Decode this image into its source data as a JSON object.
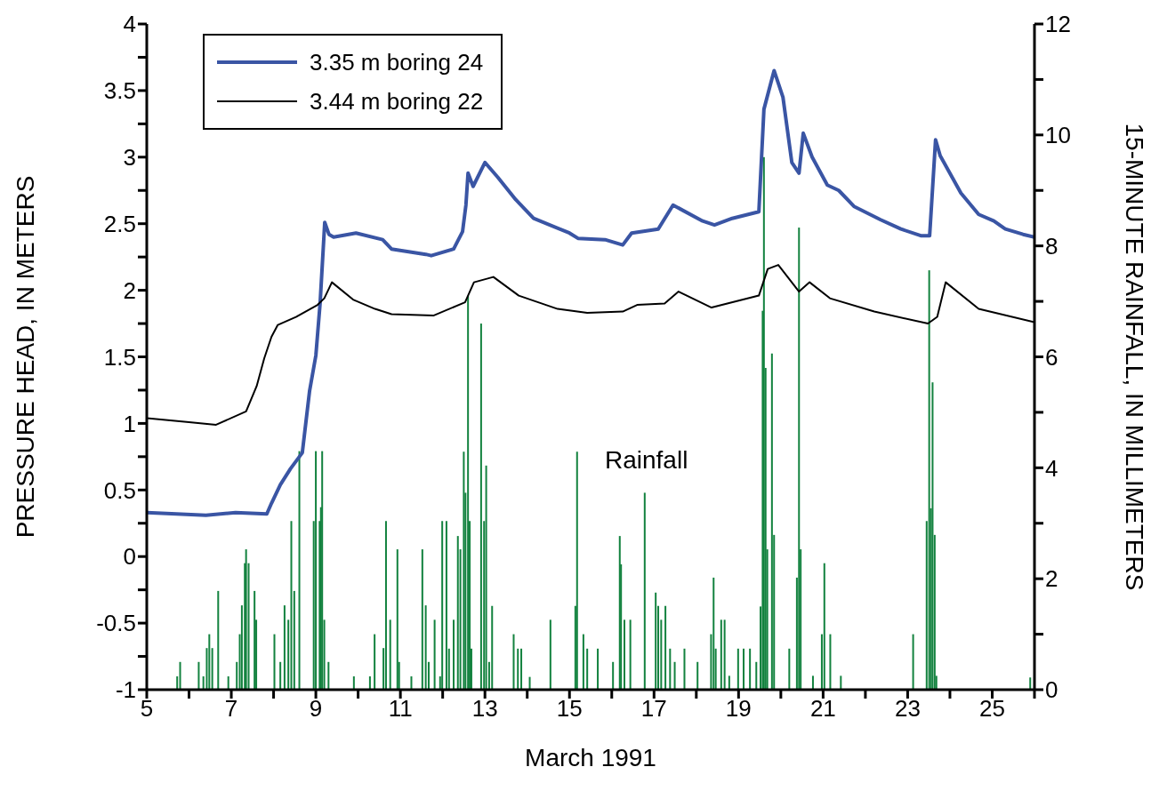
{
  "chart_data": {
    "type": "line",
    "xlabel": "March 1991",
    "ylabel": "PRESSURE HEAD, IN METERS",
    "y2label": "15-MINUTE RAINFALL, IN MILLIMETERS",
    "xlim": [
      5,
      26
    ],
    "xticks": [
      5,
      {
        "value": 6,
        "label": null
      },
      7,
      {
        "value": 8,
        "label": null
      },
      9,
      {
        "value": 10,
        "label": null
      },
      11,
      {
        "value": 12,
        "label": null
      },
      13,
      {
        "value": 14,
        "label": null
      },
      15,
      {
        "value": 16,
        "label": null
      },
      17,
      {
        "value": 18,
        "label": null
      },
      19,
      {
        "value": 20,
        "label": null
      },
      21,
      {
        "value": 22,
        "label": null
      },
      23,
      {
        "value": 24,
        "label": null
      },
      25,
      {
        "value": 26,
        "label": null
      }
    ],
    "ylim": [
      -1,
      4
    ],
    "yticks": [
      -1,
      {
        "value": -0.75,
        "label": null
      },
      -0.5,
      {
        "value": -0.25,
        "label": null
      },
      0,
      {
        "value": 0.25,
        "label": null
      },
      0.5,
      {
        "value": 0.75,
        "label": null
      },
      1,
      {
        "value": 1.25,
        "label": null
      },
      1.5,
      {
        "value": 1.75,
        "label": null
      },
      2,
      {
        "value": 2.25,
        "label": null
      },
      2.5,
      {
        "value": 2.75,
        "label": null
      },
      3,
      {
        "value": 3.25,
        "label": null
      },
      3.5,
      {
        "value": 3.75,
        "label": null
      },
      4
    ],
    "y2lim": [
      0,
      12
    ],
    "y2ticks": [
      0,
      {
        "value": 1,
        "label": null
      },
      2,
      {
        "value": 3,
        "label": null
      },
      4,
      {
        "value": 5,
        "label": null
      },
      6,
      {
        "value": 7,
        "label": null
      },
      8,
      {
        "value": 9,
        "label": null
      },
      10,
      {
        "value": 11,
        "label": null
      },
      12
    ],
    "legend": "top left",
    "grid": false,
    "marker": "none",
    "series": [
      {
        "name": "3.35 m boring 24",
        "color": "#3a55a4",
        "x": [
          5,
          5.7,
          6.4,
          7.1,
          7.84,
          7.95,
          8.16,
          8.4,
          8.68,
          8.85,
          9.0,
          9.1,
          9.21,
          9.31,
          9.42,
          9.95,
          10.58,
          10.79,
          11.6,
          11.73,
          12.26,
          12.47,
          12.55,
          12.6,
          12.72,
          13.0,
          13.3,
          13.73,
          14.15,
          15.0,
          15.2,
          15.84,
          16.26,
          16.47,
          17.1,
          17.45,
          18.15,
          18.43,
          18.85,
          19.48,
          19.6,
          19.84,
          20.05,
          20.26,
          20.43,
          20.53,
          20.74,
          21.1,
          21.37,
          21.73,
          22.36,
          22.84,
          23.31,
          23.52,
          23.66,
          23.77,
          23.98,
          24.26,
          24.68,
          25.04,
          25.31,
          25.73,
          26
        ],
        "values": [
          0.33,
          0.32,
          0.31,
          0.33,
          0.32,
          0.4,
          0.54,
          0.66,
          0.78,
          1.24,
          1.51,
          1.9,
          2.51,
          2.42,
          2.4,
          2.43,
          2.38,
          2.31,
          2.27,
          2.26,
          2.31,
          2.44,
          2.64,
          2.88,
          2.78,
          2.96,
          2.85,
          2.68,
          2.54,
          2.43,
          2.39,
          2.38,
          2.34,
          2.43,
          2.46,
          2.64,
          2.52,
          2.49,
          2.54,
          2.59,
          3.36,
          3.65,
          3.45,
          2.96,
          2.88,
          3.18,
          3.0,
          2.79,
          2.75,
          2.63,
          2.53,
          2.46,
          2.41,
          2.41,
          3.13,
          3.01,
          2.89,
          2.73,
          2.57,
          2.52,
          2.46,
          2.42,
          2.4
        ]
      },
      {
        "name": "3.44 m boring 22",
        "color": "#000000",
        "x": [
          5,
          6.0,
          6.64,
          7.35,
          7.6,
          7.78,
          7.95,
          8.1,
          8.53,
          9.04,
          9.2,
          9.38,
          9.88,
          10.4,
          10.79,
          11.78,
          12.53,
          12.74,
          13.2,
          13.8,
          14.72,
          15.42,
          16.26,
          16.6,
          17.25,
          17.58,
          18.36,
          19.48,
          19.69,
          19.94,
          20.43,
          20.68,
          21.16,
          22.21,
          23.48,
          23.7,
          23.9,
          24.68,
          26
        ],
        "values": [
          1.04,
          1.01,
          0.99,
          1.09,
          1.28,
          1.49,
          1.65,
          1.74,
          1.8,
          1.89,
          1.94,
          2.06,
          1.93,
          1.86,
          1.82,
          1.81,
          1.91,
          2.06,
          2.1,
          1.96,
          1.86,
          1.83,
          1.84,
          1.89,
          1.9,
          1.99,
          1.87,
          1.96,
          2.16,
          2.19,
          1.99,
          2.06,
          1.94,
          1.84,
          1.75,
          1.8,
          2.06,
          1.86,
          1.76
        ]
      },
      {
        "name": "Rainfall",
        "type": "bar",
        "axis": "y2",
        "color": "#13823f",
        "x": [
          5.72,
          5.79,
          6.23,
          6.34,
          6.42,
          6.48,
          6.55,
          6.69,
          6.93,
          7.13,
          7.2,
          7.25,
          7.32,
          7.35,
          7.41,
          7.55,
          7.59,
          8.02,
          8.16,
          8.26,
          8.35,
          8.42,
          8.49,
          8.61,
          8.95,
          9.0,
          9.09,
          9.12,
          9.15,
          9.2,
          9.3,
          9.9,
          10.28,
          10.39,
          10.6,
          10.66,
          10.76,
          10.93,
          10.97,
          11.26,
          11.52,
          11.6,
          11.67,
          11.81,
          11.94,
          11.99,
          12.09,
          12.15,
          12.26,
          12.36,
          12.42,
          12.5,
          12.54,
          12.6,
          12.64,
          12.68,
          12.91,
          12.98,
          13.03,
          13.1,
          13.17,
          13.68,
          13.78,
          13.86,
          14.06,
          14.55,
          15.14,
          15.18,
          15.33,
          15.42,
          15.67,
          16.03,
          16.19,
          16.22,
          16.3,
          16.44,
          16.78,
          17.04,
          17.1,
          17.17,
          17.27,
          17.38,
          17.49,
          17.72,
          18.03,
          18.35,
          18.41,
          18.46,
          18.59,
          18.67,
          18.78,
          18.99,
          19.12,
          19.27,
          19.42,
          19.52,
          19.57,
          19.6,
          19.64,
          19.68,
          19.79,
          19.84,
          20.2,
          20.38,
          20.43,
          20.47,
          20.76,
          20.97,
          21.03,
          21.17,
          21.42,
          23.13,
          23.45,
          23.51,
          23.55,
          23.59,
          23.64,
          23.68,
          25.9
        ],
        "values": [
          0.24,
          0.5,
          0.5,
          0.24,
          0.75,
          1.0,
          0.75,
          1.78,
          0.24,
          0.5,
          1.0,
          1.52,
          2.28,
          2.53,
          2.28,
          1.78,
          1.26,
          1.0,
          0.5,
          1.52,
          1.26,
          3.04,
          1.78,
          4.3,
          3.04,
          4.3,
          3.04,
          3.29,
          4.3,
          1.26,
          0.5,
          0.24,
          0.24,
          1.0,
          0.75,
          3.04,
          1.26,
          2.53,
          0.5,
          0.24,
          2.53,
          1.52,
          0.5,
          1.26,
          0.24,
          3.04,
          3.04,
          0.74,
          1.26,
          2.77,
          2.53,
          4.29,
          3.55,
          7.1,
          3.04,
          0.74,
          6.6,
          3.04,
          4.04,
          0.5,
          1.51,
          1.0,
          0.74,
          0.74,
          0.23,
          1.26,
          1.51,
          4.29,
          1.0,
          0.74,
          0.74,
          0.5,
          2.77,
          2.26,
          1.26,
          1.26,
          3.55,
          1.75,
          1.51,
          1.26,
          1.51,
          0.74,
          0.5,
          0.74,
          0.5,
          1.0,
          2.02,
          0.74,
          1.26,
          1.26,
          0.25,
          0.74,
          0.74,
          0.74,
          0.5,
          1.5,
          6.83,
          9.6,
          5.8,
          2.53,
          6.06,
          2.79,
          0.74,
          2.02,
          8.33,
          2.53,
          0.25,
          1.0,
          2.28,
          1.0,
          0.25,
          1.0,
          3.04,
          7.56,
          3.27,
          5.54,
          2.79,
          0.25,
          0.22
        ]
      }
    ]
  }
}
